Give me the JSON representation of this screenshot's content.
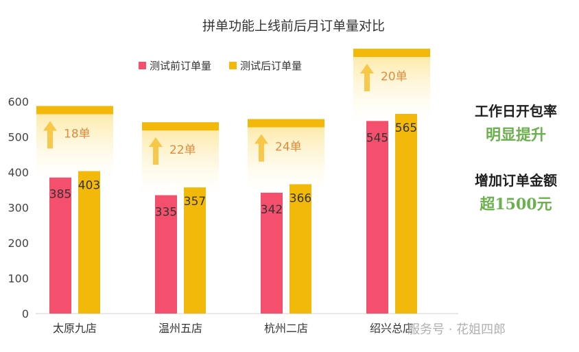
{
  "chart_data": {
    "type": "bar",
    "title": "拼单功能上线前后月订单量对比",
    "categories": [
      "太原九店",
      "温州五店",
      "杭州二店",
      "绍兴总店"
    ],
    "series": [
      {
        "name": "测试前订单量",
        "values": [
          385,
          335,
          342,
          545
        ],
        "color": "#f4506e"
      },
      {
        "name": "测试后订单量",
        "values": [
          403,
          357,
          366,
          565
        ],
        "color": "#f2b90a"
      }
    ],
    "increase_labels": [
      "18单",
      "22单",
      "24单",
      "20单"
    ],
    "ylim": [
      0,
      600
    ],
    "yticks": [
      0,
      100,
      200,
      300,
      400,
      500,
      600
    ],
    "legend": "top-center",
    "grid": false
  },
  "side_notes": {
    "line1": "工作日开包率",
    "line2": "明显提升",
    "line3": "增加订单金额",
    "line4": "超1500元"
  },
  "watermark": "服务号 · 花姐四郎"
}
